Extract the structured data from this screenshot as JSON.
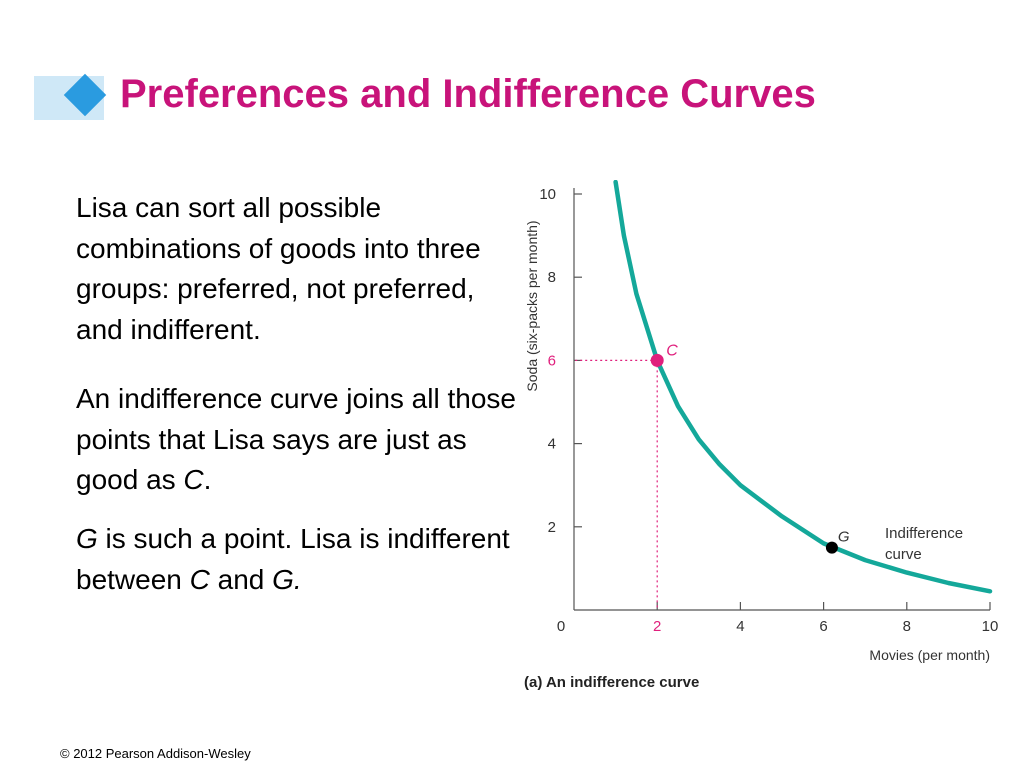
{
  "header": {
    "title": "Preferences and Indifference Curves"
  },
  "body": {
    "para1": "Lisa can sort all possible combinations of goods into three groups: preferred, not preferred, and indifferent.",
    "para2_text": "An indifference curve joins all those points that Lisa says are just as good as ",
    "para2_C": "C",
    "para2_end": ".",
    "para3_G": "G",
    "para3_text1": " is such a point. Lisa is indifferent between ",
    "para3_C": "C",
    "para3_and": " and ",
    "para3_G2": "G."
  },
  "footer": {
    "copyright": "© 2012 Pearson Addison-Wesley"
  },
  "colors": {
    "title": "#c8137a",
    "curve": "#14a89a",
    "point_c": "#e0207d",
    "point_g": "#000000",
    "guide": "#e0207d",
    "axis": "#555555"
  },
  "chart_data": {
    "type": "line",
    "title": "(a) An indifference curve",
    "xlabel": "Movies (per month)",
    "ylabel": "Soda (six-packs per month)",
    "xlim": [
      0,
      10
    ],
    "ylim": [
      0,
      10
    ],
    "x_ticks": [
      0,
      2,
      4,
      6,
      8,
      10
    ],
    "y_ticks": [
      0,
      2,
      4,
      6,
      8,
      10
    ],
    "series": [
      {
        "name": "Indifference curve",
        "x": [
          1.0,
          1.2,
          1.5,
          2.0,
          2.5,
          3.0,
          3.5,
          4.0,
          5.0,
          6.0,
          7.0,
          8.0,
          9.0,
          10.0
        ],
        "y": [
          10.5,
          9.0,
          7.6,
          6.0,
          4.9,
          4.1,
          3.5,
          3.0,
          2.25,
          1.6,
          1.2,
          0.9,
          0.65,
          0.45
        ]
      }
    ],
    "points": [
      {
        "label": "C",
        "x": 2,
        "y": 6
      },
      {
        "label": "G",
        "x": 6.2,
        "y": 1.5
      }
    ],
    "curve_label": [
      "Indifference",
      "curve"
    ],
    "guide_tick_x": "2",
    "guide_tick_y": "6"
  }
}
